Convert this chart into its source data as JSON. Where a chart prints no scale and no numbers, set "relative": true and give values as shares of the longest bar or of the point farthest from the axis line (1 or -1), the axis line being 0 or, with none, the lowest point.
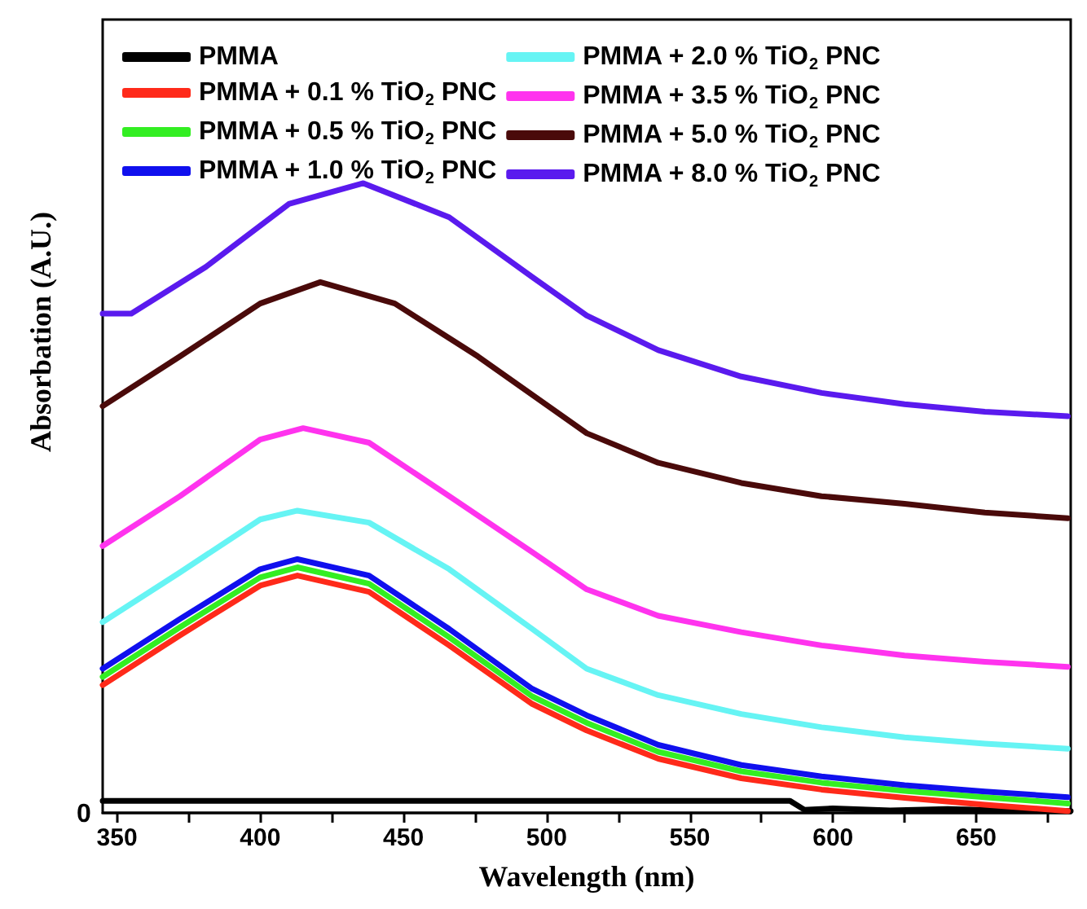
{
  "chart_data": {
    "type": "line",
    "xlabel": "Wavelength (nm)",
    "ylabel": "Absorbation (A.U.)",
    "relative": true,
    "xlim": [
      345,
      683
    ],
    "xticks": [
      350,
      {
        "value": 375,
        "label": null
      },
      400,
      {
        "value": 425,
        "label": null
      },
      450,
      {
        "value": 475,
        "label": null
      },
      500,
      {
        "value": 525,
        "label": null
      },
      550,
      {
        "value": 575,
        "label": null
      },
      600,
      {
        "value": 625,
        "label": null
      },
      650,
      {
        "value": 675,
        "label": null
      }
    ],
    "legend": "top",
    "grid": false,
    "marker": "none",
    "line_style": "solid",
    "annotations": [
      "0"
    ],
    "series": [
      {
        "name": "PMMA",
        "color": "#000000",
        "x": [
          345,
          400,
          450,
          500,
          550,
          585,
          590,
          600,
          620,
          640,
          660,
          683
        ],
        "values": [
          0.019,
          0.019,
          0.019,
          0.019,
          0.019,
          0.019,
          0.005,
          0.007,
          0.004,
          0.006,
          0.004,
          0.003
        ]
      },
      {
        "name": "PMMA + 0.1 % TiO$_{2}$ PNC",
        "color": "#ff2a1a",
        "x": [
          345,
          372,
          400,
          413,
          438,
          466,
          495,
          514,
          539,
          568,
          596,
          625,
          653,
          682
        ],
        "values": [
          0.203,
          0.282,
          0.361,
          0.377,
          0.351,
          0.266,
          0.173,
          0.131,
          0.086,
          0.055,
          0.037,
          0.024,
          0.013,
          0.003
        ]
      },
      {
        "name": "PMMA + 0.5 % TiO$_{2}$ PNC",
        "color": "#33ee22",
        "x": [
          345,
          372,
          400,
          413,
          438,
          466,
          495,
          514,
          539,
          568,
          596,
          625,
          653,
          682
        ],
        "values": [
          0.216,
          0.295,
          0.374,
          0.39,
          0.364,
          0.279,
          0.185,
          0.143,
          0.097,
          0.066,
          0.048,
          0.035,
          0.025,
          0.015
        ]
      },
      {
        "name": "PMMA + 1.0 % TiO$_{2}$ PNC",
        "color": "#1010ee",
        "x": [
          345,
          372,
          400,
          413,
          438,
          466,
          495,
          514,
          539,
          568,
          596,
          625,
          653,
          682
        ],
        "values": [
          0.229,
          0.308,
          0.387,
          0.403,
          0.377,
          0.292,
          0.197,
          0.155,
          0.108,
          0.076,
          0.058,
          0.044,
          0.034,
          0.025
        ]
      },
      {
        "name": "PMMA + 2.0 % TiO$_{2}$ PNC",
        "color": "#66f4f4",
        "x": [
          345,
          372,
          400,
          413,
          438,
          466,
          495,
          514,
          539,
          568,
          596,
          625,
          653,
          682
        ],
        "values": [
          0.303,
          0.382,
          0.466,
          0.48,
          0.461,
          0.387,
          0.292,
          0.229,
          0.187,
          0.157,
          0.136,
          0.12,
          0.11,
          0.102
        ]
      },
      {
        "name": "PMMA + 3.5 % TiO$_{2}$ PNC",
        "color": "#ff33ee",
        "x": [
          345,
          372,
          400,
          415,
          438,
          466,
          495,
          514,
          539,
          568,
          596,
          625,
          653,
          682
        ],
        "values": [
          0.424,
          0.503,
          0.593,
          0.611,
          0.588,
          0.503,
          0.414,
          0.355,
          0.313,
          0.287,
          0.266,
          0.25,
          0.24,
          0.232
        ]
      },
      {
        "name": "PMMA + 5.0 % TiO$_{2}$ PNC",
        "color": "#4a0a0a",
        "x": [
          345,
          372,
          400,
          421,
          447,
          476,
          514,
          539,
          568,
          596,
          625,
          653,
          682
        ],
        "values": [
          0.646,
          0.725,
          0.809,
          0.843,
          0.809,
          0.725,
          0.603,
          0.556,
          0.524,
          0.503,
          0.491,
          0.477,
          0.468
        ]
      },
      {
        "name": "PMMA + 8.0 % TiO$_{2}$ PNC",
        "color": "#5a1aee",
        "x": [
          345,
          355,
          381,
          410,
          436,
          466,
          495,
          514,
          539,
          568,
          596,
          625,
          653,
          682
        ],
        "values": [
          0.793,
          0.793,
          0.867,
          0.967,
          1.0,
          0.946,
          0.851,
          0.79,
          0.735,
          0.693,
          0.667,
          0.649,
          0.637,
          0.63
        ]
      }
    ]
  }
}
